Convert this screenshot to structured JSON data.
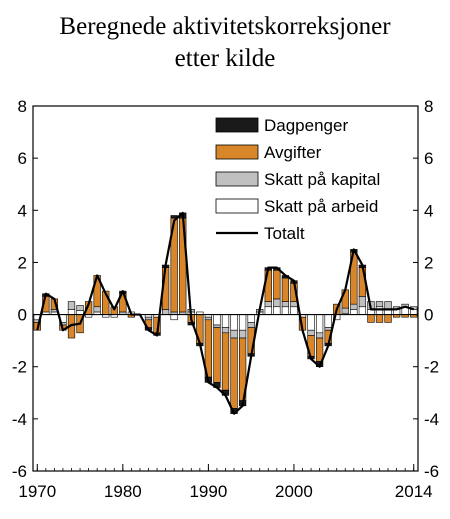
{
  "chart_data": {
    "type": "bar",
    "title_lines": [
      "Beregnede aktivitetskorreksjoner",
      "etter kilde"
    ],
    "xlabel": "",
    "ylabel": "",
    "stacked": true,
    "x": [
      1970,
      1971,
      1972,
      1973,
      1974,
      1975,
      1976,
      1977,
      1978,
      1979,
      1980,
      1981,
      1982,
      1983,
      1984,
      1985,
      1986,
      1987,
      1988,
      1989,
      1990,
      1991,
      1992,
      1993,
      1994,
      1995,
      1996,
      1997,
      1998,
      1999,
      2000,
      2001,
      2002,
      2003,
      2004,
      2005,
      2006,
      2007,
      2008,
      2009,
      2010,
      2011,
      2012,
      2013,
      2014
    ],
    "x_tick_labels": [
      "1970",
      "1980",
      "1990",
      "2000",
      "2014"
    ],
    "x_tick_values": [
      1970,
      1980,
      1990,
      2000,
      2014
    ],
    "xlim": [
      1969.5,
      2014.5
    ],
    "ylim": [
      -6,
      8
    ],
    "y_ticks": [
      -6,
      -4,
      -2,
      0,
      2,
      4,
      6,
      8
    ],
    "y_tick_labels": [
      "-6",
      "-4",
      "-2",
      "0",
      "2",
      "4",
      "6",
      "8"
    ],
    "grid": false,
    "legend_position": "top-right",
    "series": [
      {
        "name": "Skatt på arbeid",
        "color": "#ffffff",
        "values": [
          -0.2,
          0.1,
          0.1,
          -0.3,
          0.2,
          0.15,
          -0.1,
          0.1,
          -0.1,
          -0.1,
          0.0,
          0.1,
          0.0,
          -0.1,
          -0.1,
          0.0,
          -0.2,
          0.0,
          0.1,
          0.1,
          -0.1,
          -0.4,
          -0.5,
          -0.6,
          -0.6,
          -0.3,
          0.1,
          0.3,
          0.3,
          0.3,
          0.3,
          -0.1,
          -0.6,
          -0.7,
          -0.5,
          -0.2,
          0.05,
          0.2,
          0.3,
          0.2,
          0.3,
          0.2,
          0.2,
          0.3,
          0.2
        ]
      },
      {
        "name": "Skatt på kapital",
        "color": "#c0c0c0",
        "values": [
          -0.1,
          0.0,
          0.1,
          -0.1,
          0.3,
          0.2,
          0.0,
          0.2,
          0.0,
          0.0,
          0.1,
          0.0,
          0.0,
          -0.1,
          0.0,
          0.2,
          0.1,
          0.1,
          0.1,
          0.0,
          -0.1,
          -0.1,
          -0.2,
          -0.3,
          -0.3,
          -0.2,
          0.1,
          0.2,
          0.3,
          0.2,
          0.2,
          0.0,
          -0.2,
          -0.2,
          -0.1,
          0.0,
          0.2,
          0.2,
          0.4,
          0.3,
          0.2,
          0.3,
          0.1,
          0.1,
          0.1
        ]
      },
      {
        "name": "Avgifter",
        "color": "#d9862a",
        "values": [
          -0.3,
          0.6,
          0.4,
          -0.2,
          -0.9,
          -0.7,
          0.5,
          1.2,
          0.9,
          0.3,
          0.7,
          -0.1,
          0.0,
          -0.3,
          -0.6,
          1.6,
          3.6,
          3.6,
          -0.3,
          -1.1,
          -2.2,
          -2.1,
          -2.2,
          -2.7,
          -2.4,
          -1.0,
          0.0,
          1.2,
          1.1,
          0.9,
          0.7,
          -0.5,
          -0.8,
          -0.9,
          -0.5,
          0.4,
          0.7,
          2.0,
          1.1,
          -0.3,
          -0.3,
          -0.3,
          -0.1,
          -0.1,
          -0.1
        ]
      },
      {
        "name": "Dagpenger",
        "color": "#1a1a1a",
        "values": [
          0.0,
          0.1,
          0.0,
          0.0,
          0.0,
          0.0,
          0.0,
          0.0,
          0.0,
          0.0,
          0.1,
          0.0,
          0.0,
          -0.1,
          -0.1,
          0.1,
          0.1,
          0.2,
          -0.1,
          -0.1,
          -0.2,
          -0.2,
          -0.2,
          -0.2,
          -0.2,
          -0.1,
          0.0,
          0.1,
          0.1,
          0.1,
          0.1,
          0.0,
          -0.1,
          -0.2,
          -0.1,
          0.0,
          0.0,
          0.1,
          0.1,
          0.0,
          0.0,
          0.0,
          0.0,
          0.0,
          0.0
        ]
      },
      {
        "name": "Totalt",
        "type": "line",
        "color": "#000000",
        "values": [
          -0.6,
          0.8,
          0.6,
          -0.6,
          -0.4,
          -0.35,
          0.4,
          1.5,
          0.8,
          0.2,
          0.9,
          0.0,
          0.0,
          -0.6,
          -0.8,
          1.9,
          3.6,
          3.9,
          -0.2,
          -1.1,
          -2.6,
          -2.8,
          -3.1,
          -3.8,
          -3.5,
          -1.6,
          0.2,
          1.8,
          1.8,
          1.5,
          1.3,
          -0.6,
          -1.7,
          -2.0,
          -1.2,
          0.2,
          0.95,
          2.5,
          1.9,
          0.2,
          0.2,
          0.2,
          0.2,
          0.3,
          0.2
        ]
      }
    ],
    "legend_order": [
      "Dagpenger",
      "Avgifter",
      "Skatt på kapital",
      "Skatt på arbeid",
      "Totalt"
    ]
  }
}
